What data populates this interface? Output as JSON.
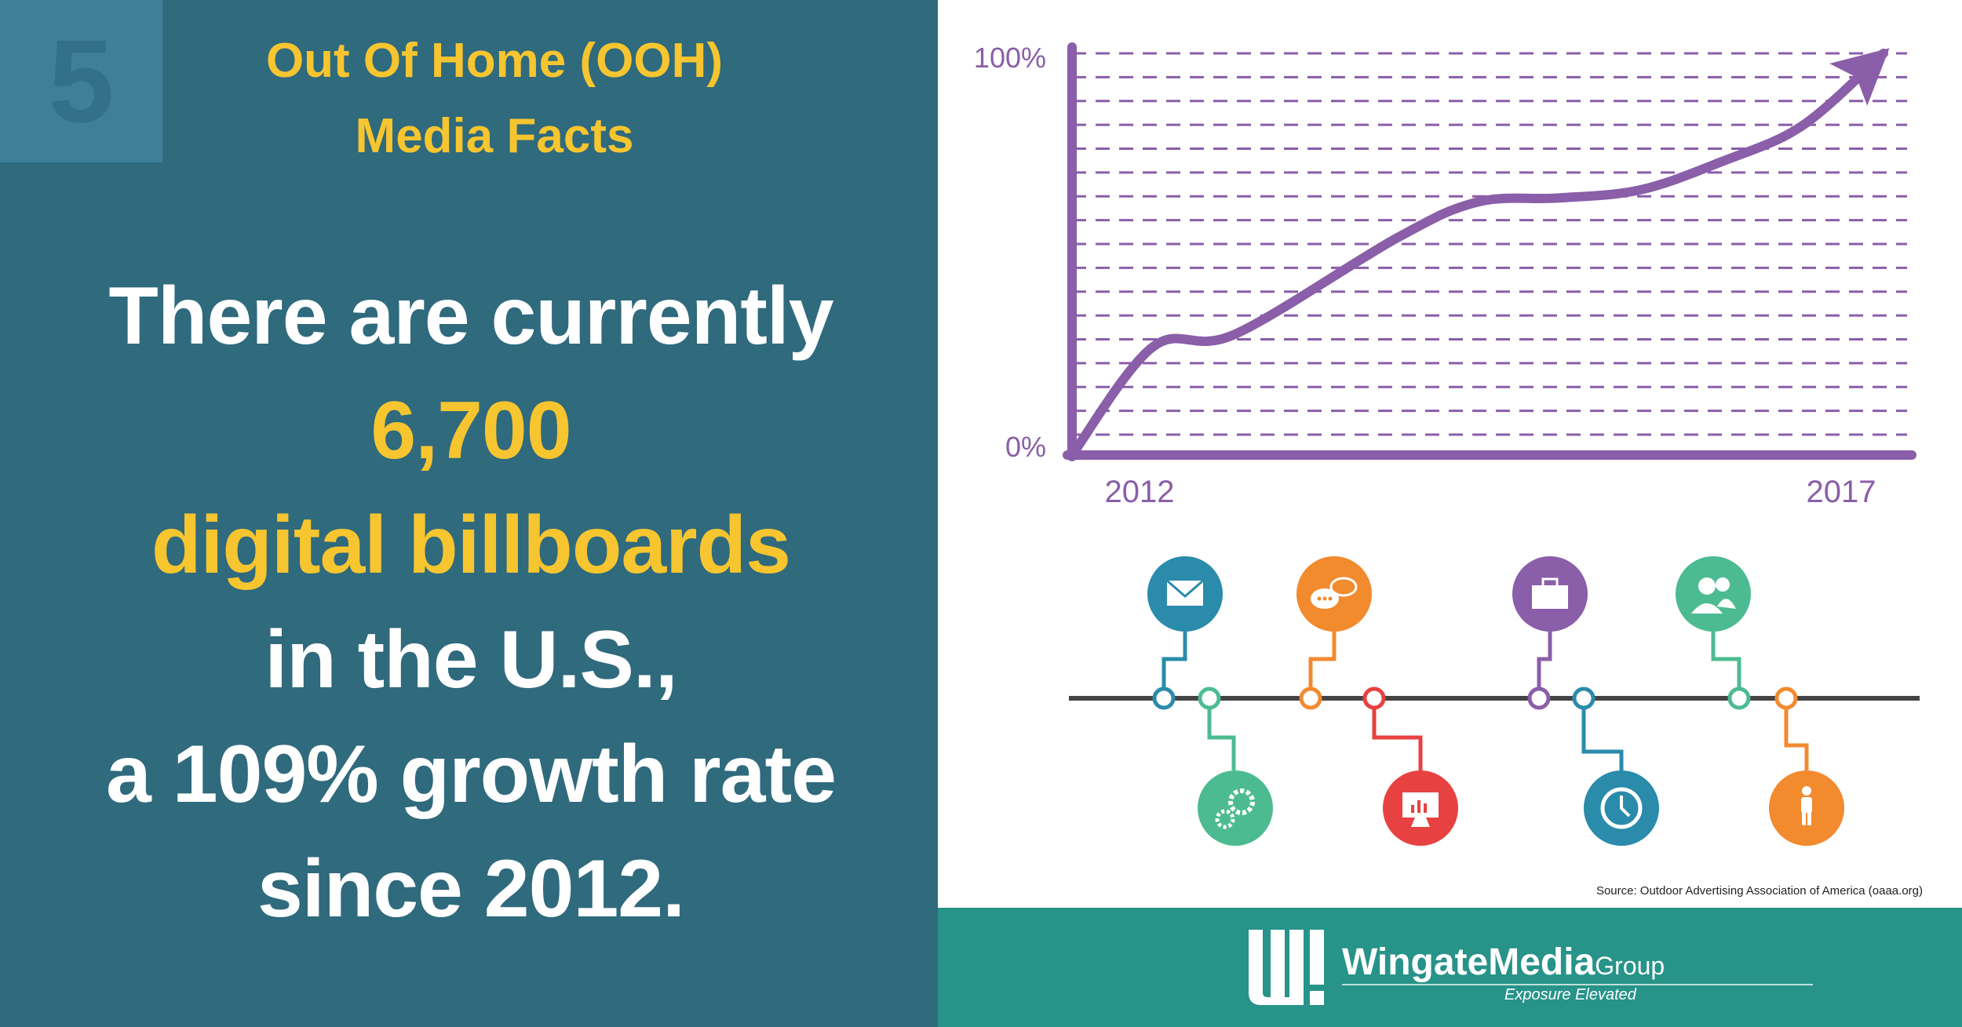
{
  "badge_number": "5",
  "header": {
    "line1": "Out Of Home (OOH)",
    "line2": "Media Facts"
  },
  "fact": {
    "line1": "There are currently",
    "line2": "6,700",
    "line3": "digital billboards",
    "line4": "in the U.S.,",
    "line5": "a 109% growth rate",
    "line6": "since 2012."
  },
  "chart_data": {
    "type": "line",
    "y_tick_labels": [
      "100%",
      "0%"
    ],
    "x_tick_labels": [
      "2012",
      "2017"
    ],
    "ylim": [
      0,
      100
    ],
    "gridlines": true,
    "series": [
      {
        "x": [
          2012,
          2012.5,
          2013,
          2014,
          2014.5,
          2015,
          2015.5,
          2016,
          2016.5,
          2017
        ],
        "values": [
          0,
          27,
          30,
          54,
          63,
          64,
          66,
          73,
          82,
          100
        ]
      }
    ],
    "line_color": "#8a5ea8"
  },
  "timeline": {
    "icons": [
      "envelope-icon",
      "gears-icon",
      "chat-bubbles-icon",
      "presentation-chart-icon",
      "briefcase-icon",
      "clock-icon",
      "users-icon",
      "person-icon"
    ]
  },
  "source": "Source: Outdoor Advertising Association of America (oaaa.org)",
  "brand": {
    "name": "WingateMedia",
    "suffix": "Group",
    "tagline": "Exposure Elevated"
  },
  "colors": {
    "left_panel": "#2f6a7d",
    "accent_yellow": "#f7c52f",
    "chart_purple": "#8a5ea8",
    "footer_teal": "#279389"
  }
}
